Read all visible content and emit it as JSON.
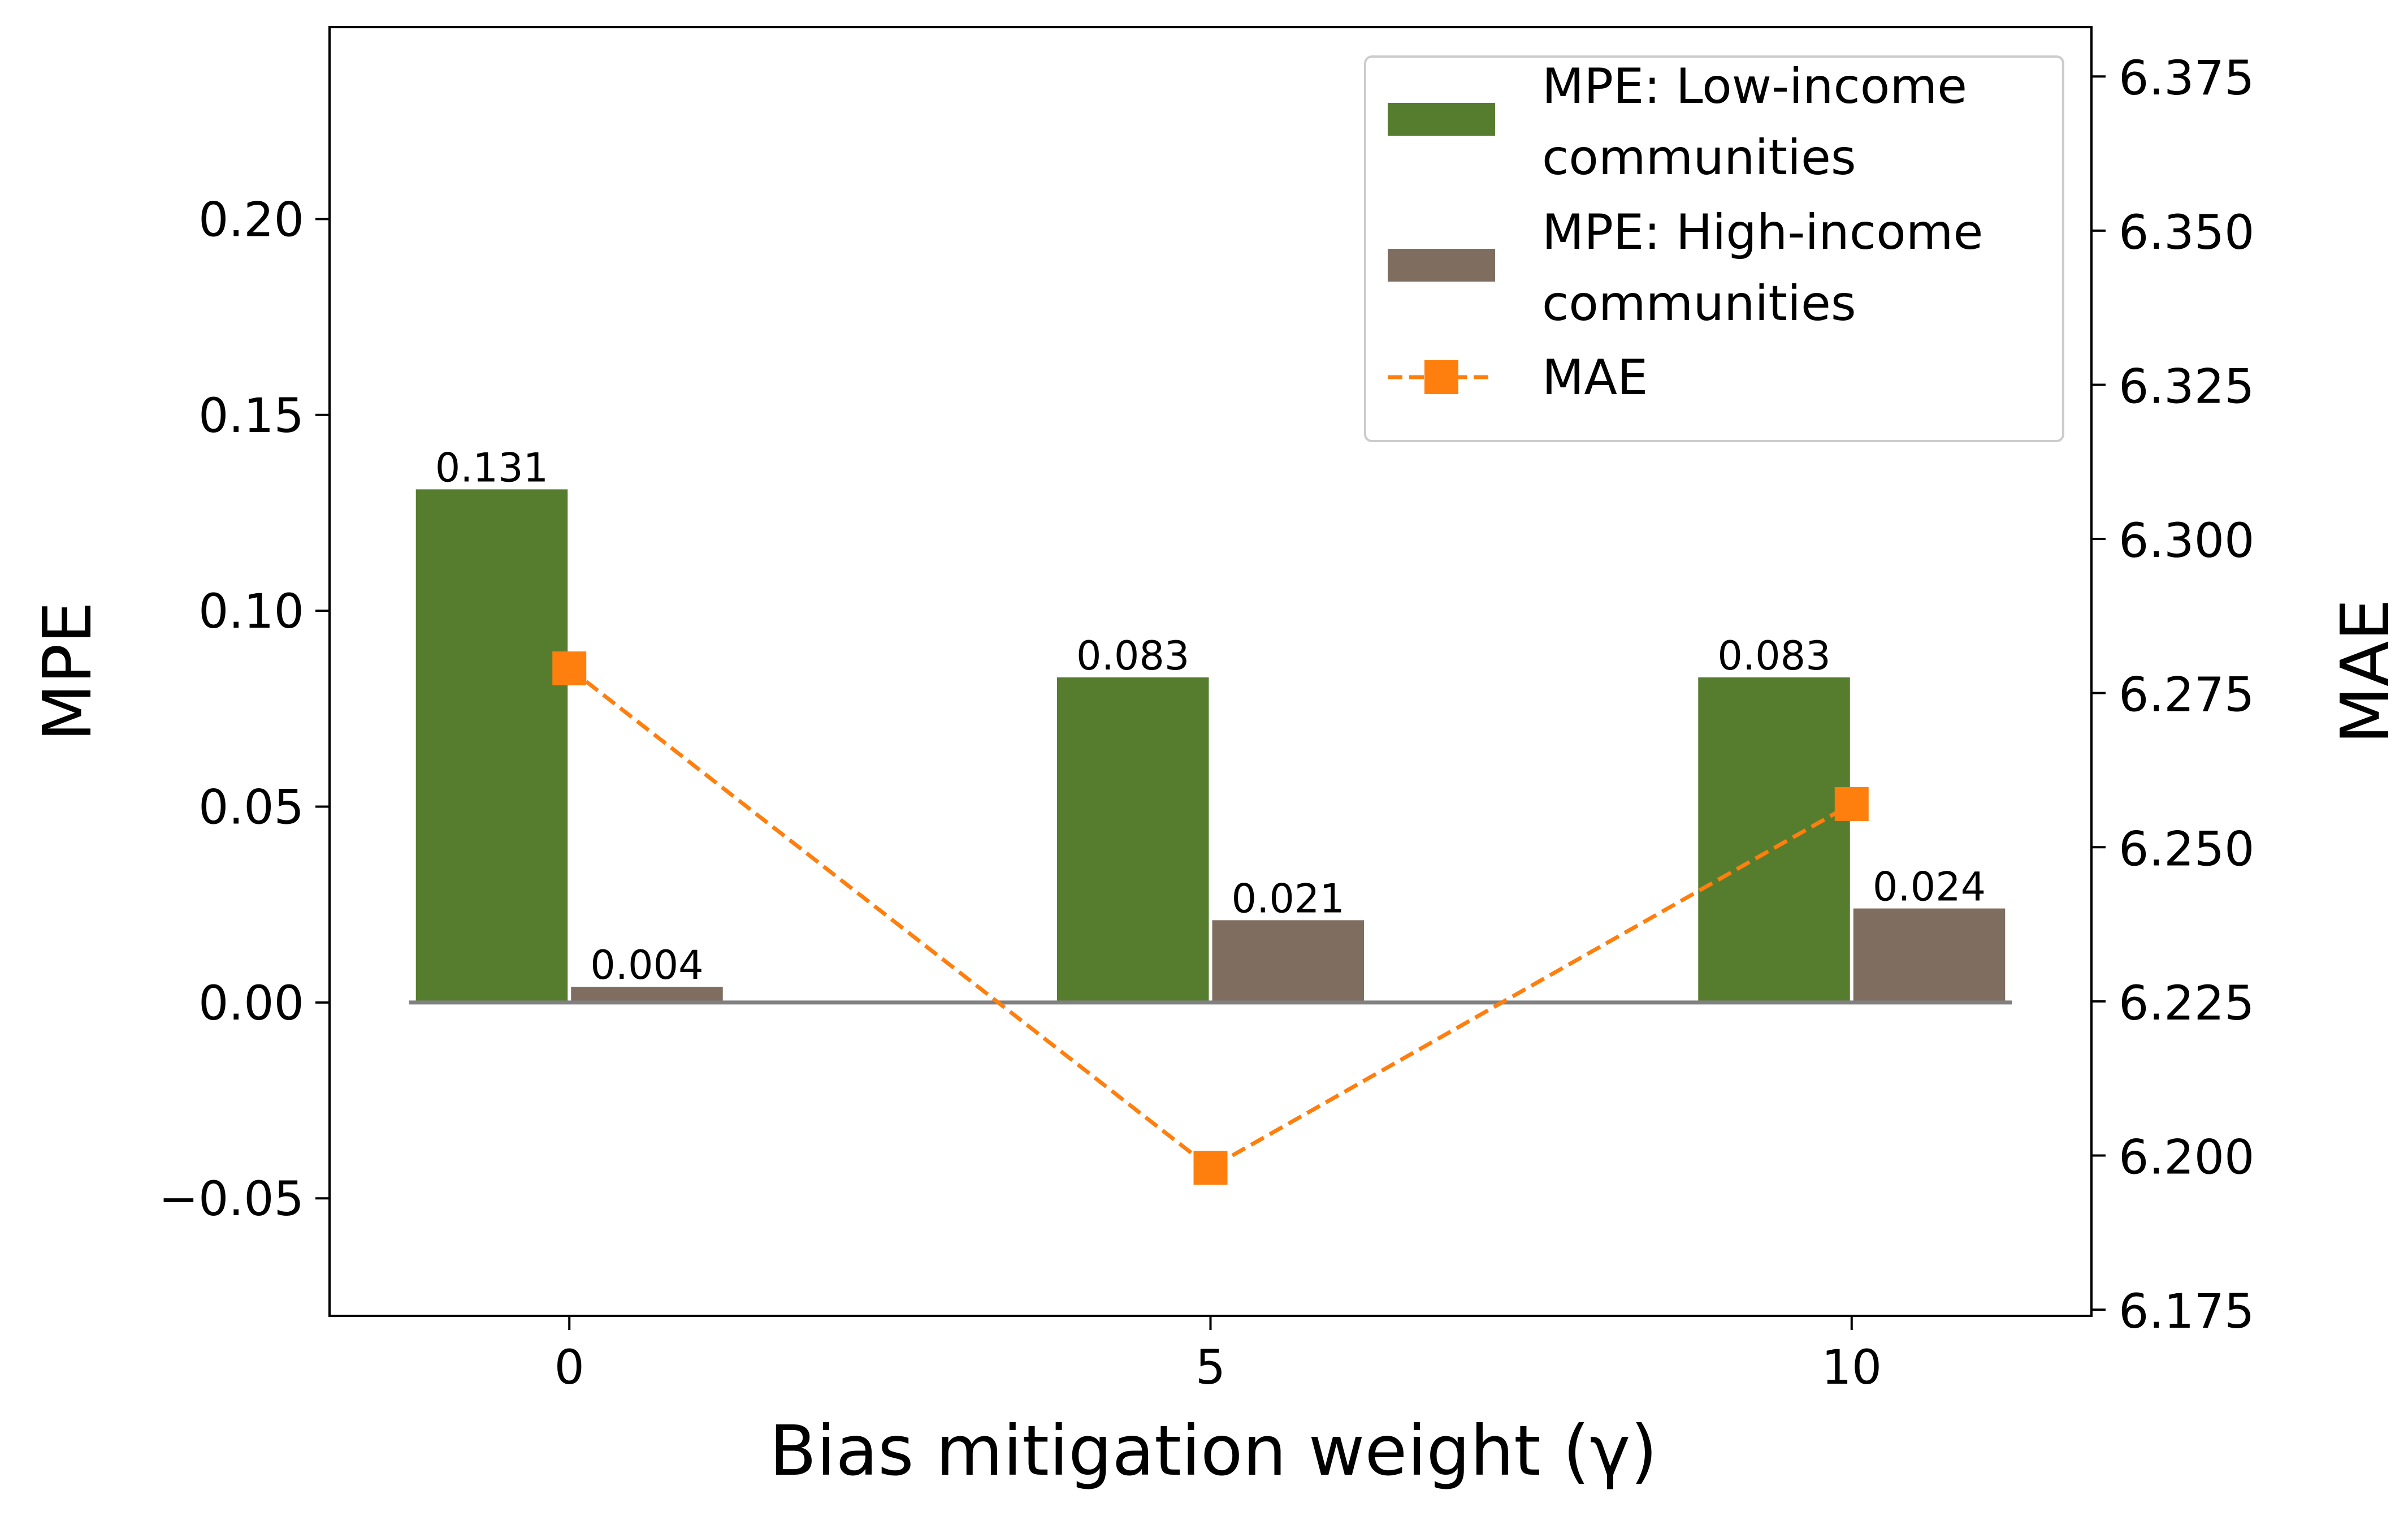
{
  "chart_data": {
    "type": "bar",
    "xlabel": "Bias mitigation weight (γ)",
    "ylabel_left": "MPE",
    "ylabel_right": "MAE",
    "categories": [
      "0",
      "5",
      "10"
    ],
    "x": [
      0,
      5,
      10
    ],
    "ylim_left": [
      -0.08,
      0.249
    ],
    "ylim_right": [
      6.174,
      6.383
    ],
    "yticks_left": [
      "0.20",
      "0.15",
      "0.10",
      "0.05",
      "0.00",
      "−0.05"
    ],
    "yticks_left_values": [
      0.2,
      0.15,
      0.1,
      0.05,
      0.0,
      -0.05
    ],
    "yticks_right": [
      "6.375",
      "6.350",
      "6.325",
      "6.300",
      "6.275",
      "6.250",
      "6.225",
      "6.200",
      "6.175"
    ],
    "yticks_right_values": [
      6.375,
      6.35,
      6.325,
      6.3,
      6.275,
      6.25,
      6.225,
      6.2,
      6.175
    ],
    "grid": false,
    "legend_position": "top-right",
    "series": [
      {
        "name": "MPE: Low-income communities",
        "legend_lines": [
          "MPE: Low-income",
          "communities"
        ],
        "kind": "bar",
        "axis": "left",
        "color": "#567d2e",
        "values": [
          0.131,
          0.083,
          0.083
        ],
        "labels": [
          "0.131",
          "0.083",
          "0.083"
        ]
      },
      {
        "name": "MPE: High-income communities",
        "legend_lines": [
          "MPE: High-income",
          "communities"
        ],
        "kind": "bar",
        "axis": "left",
        "color": "#7f6d5f",
        "values": [
          0.004,
          0.021,
          0.024
        ],
        "labels": [
          "0.004",
          "0.021",
          "0.024"
        ]
      },
      {
        "name": "MAE",
        "legend_lines": [
          "MAE"
        ],
        "kind": "line",
        "axis": "right",
        "color": "#ff7f0e",
        "style": "dashed",
        "marker": "square",
        "values": [
          6.279,
          6.198,
          6.257
        ]
      }
    ]
  }
}
